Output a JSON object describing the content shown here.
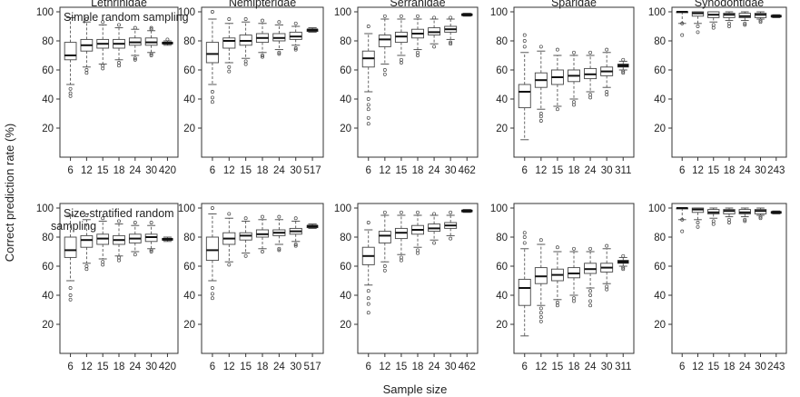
{
  "figure": {
    "y_label": "Correct prediction rate (%)",
    "x_label": "Sample size",
    "rows": [
      "Simple random sampling",
      "Size-stratified random sampling"
    ],
    "families": [
      "Lethrinidae",
      "Nemipteridae",
      "Serranidae",
      "Sparidae",
      "Synodontidae"
    ]
  },
  "chart_data": [
    {
      "type": "box",
      "title": "Lethrinidae",
      "sampling": "Simple random sampling",
      "ylim": [
        0,
        100
      ],
      "yticks": [
        20,
        40,
        60,
        80,
        100
      ],
      "categories": [
        "6",
        "12",
        "15",
        "18",
        "24",
        "30",
        "420"
      ],
      "boxes": [
        {
          "whislo": 50,
          "q1": 67,
          "med": 70,
          "q3": 79,
          "whishi": 96,
          "fliers": [
            44,
            42,
            47
          ]
        },
        {
          "whislo": 62,
          "q1": 73,
          "med": 77,
          "q3": 81,
          "whishi": 93,
          "fliers": [
            60,
            58,
            95
          ]
        },
        {
          "whislo": 64,
          "q1": 75,
          "med": 78,
          "q3": 81,
          "whishi": 91,
          "fliers": [
            63,
            61,
            93
          ]
        },
        {
          "whislo": 67,
          "q1": 75,
          "med": 78,
          "q3": 81,
          "whishi": 89,
          "fliers": [
            65,
            63,
            91
          ]
        },
        {
          "whislo": 70,
          "q1": 77,
          "med": 79,
          "q3": 82,
          "whishi": 88,
          "fliers": [
            68,
            67,
            89
          ]
        },
        {
          "whislo": 72,
          "q1": 77,
          "med": 79,
          "q3": 82,
          "whishi": 87,
          "fliers": [
            71,
            70,
            88,
            89
          ]
        },
        {
          "whislo": 77,
          "q1": 78,
          "med": 78.5,
          "q3": 79,
          "whishi": 80,
          "fliers": [
            81
          ]
        }
      ]
    },
    {
      "type": "box",
      "title": "Nemipteridae",
      "sampling": "Simple random sampling",
      "ylim": [
        0,
        100
      ],
      "yticks": [
        20,
        40,
        60,
        80,
        100
      ],
      "categories": [
        "6",
        "12",
        "15",
        "18",
        "24",
        "30",
        "517"
      ],
      "boxes": [
        {
          "whislo": 50,
          "q1": 65,
          "med": 71,
          "q3": 79,
          "whishi": 95,
          "fliers": [
            45,
            41,
            38,
            100
          ]
        },
        {
          "whislo": 65,
          "q1": 75,
          "med": 80,
          "q3": 82,
          "whishi": 92,
          "fliers": [
            62,
            59,
            95
          ]
        },
        {
          "whislo": 68,
          "q1": 77,
          "med": 80,
          "q3": 84,
          "whishi": 93,
          "fliers": [
            66,
            64,
            95
          ]
        },
        {
          "whislo": 72,
          "q1": 79,
          "med": 82,
          "q3": 85,
          "whishi": 92,
          "fliers": [
            70,
            69,
            94
          ]
        },
        {
          "whislo": 74,
          "q1": 80,
          "med": 82,
          "q3": 85,
          "whishi": 91,
          "fliers": [
            72,
            71,
            93
          ]
        },
        {
          "whislo": 77,
          "q1": 81,
          "med": 83,
          "q3": 86,
          "whishi": 90,
          "fliers": [
            75,
            74,
            92
          ]
        },
        {
          "whislo": 86,
          "q1": 86.5,
          "med": 87.5,
          "q3": 88,
          "whishi": 89,
          "fliers": []
        }
      ]
    },
    {
      "type": "box",
      "title": "Serranidae",
      "sampling": "Simple random sampling",
      "ylim": [
        0,
        100
      ],
      "yticks": [
        20,
        40,
        60,
        80,
        100
      ],
      "categories": [
        "6",
        "12",
        "15",
        "18",
        "24",
        "30",
        "462"
      ],
      "boxes": [
        {
          "whislo": 45,
          "q1": 62,
          "med": 68,
          "q3": 73,
          "whishi": 85,
          "fliers": [
            40,
            36,
            33,
            27,
            23,
            90
          ]
        },
        {
          "whislo": 64,
          "q1": 76,
          "med": 81,
          "q3": 84,
          "whishi": 95,
          "fliers": [
            60,
            57,
            97
          ]
        },
        {
          "whislo": 70,
          "q1": 79,
          "med": 83,
          "q3": 86,
          "whishi": 95,
          "fliers": [
            67,
            65,
            97
          ]
        },
        {
          "whislo": 74,
          "q1": 82,
          "med": 85,
          "q3": 88,
          "whishi": 95,
          "fliers": [
            72,
            70,
            97
          ]
        },
        {
          "whislo": 78,
          "q1": 84,
          "med": 86,
          "q3": 89,
          "whishi": 95,
          "fliers": [
            76,
            96
          ]
        },
        {
          "whislo": 81,
          "q1": 86,
          "med": 88,
          "q3": 90,
          "whishi": 95,
          "fliers": [
            79,
            78,
            96
          ]
        },
        {
          "whislo": 97,
          "q1": 97.5,
          "med": 98,
          "q3": 98.5,
          "whishi": 99,
          "fliers": []
        }
      ]
    },
    {
      "type": "box",
      "title": "Sparidae",
      "sampling": "Simple random sampling",
      "ylim": [
        0,
        100
      ],
      "yticks": [
        20,
        40,
        60,
        80,
        100
      ],
      "categories": [
        "6",
        "12",
        "15",
        "18",
        "24",
        "30",
        "311"
      ],
      "boxes": [
        {
          "whislo": 12,
          "q1": 34,
          "med": 45,
          "q3": 50,
          "whishi": 72,
          "fliers": [
            76,
            80,
            84
          ]
        },
        {
          "whislo": 33,
          "q1": 48,
          "med": 53,
          "q3": 58,
          "whishi": 73,
          "fliers": [
            30,
            28,
            25,
            76
          ]
        },
        {
          "whislo": 35,
          "q1": 50,
          "med": 55,
          "q3": 60,
          "whishi": 70,
          "fliers": [
            33,
            74
          ]
        },
        {
          "whislo": 40,
          "q1": 52,
          "med": 56,
          "q3": 60,
          "whishi": 70,
          "fliers": [
            38,
            36,
            72
          ]
        },
        {
          "whislo": 45,
          "q1": 54,
          "med": 57,
          "q3": 61,
          "whishi": 70,
          "fliers": [
            43,
            41,
            72
          ]
        },
        {
          "whislo": 48,
          "q1": 56,
          "med": 59,
          "q3": 62,
          "whishi": 72,
          "fliers": [
            45,
            43,
            74
          ]
        },
        {
          "whislo": 60,
          "q1": 62,
          "med": 63,
          "q3": 64,
          "whishi": 66,
          "fliers": [
            58,
            59,
            67
          ]
        }
      ]
    },
    {
      "type": "box",
      "title": "Synodontidae",
      "sampling": "Simple random sampling",
      "ylim": [
        0,
        100
      ],
      "yticks": [
        20,
        40,
        60,
        80,
        100
      ],
      "categories": [
        "6",
        "12",
        "15",
        "18",
        "24",
        "30",
        "243"
      ],
      "boxes": [
        {
          "whislo": 92,
          "q1": 100,
          "med": 100,
          "q3": 100,
          "whishi": 100,
          "fliers": [
            92,
            84
          ]
        },
        {
          "whislo": 92,
          "q1": 97,
          "med": 99,
          "q3": 100,
          "whishi": 100,
          "fliers": [
            90,
            86
          ]
        },
        {
          "whislo": 93,
          "q1": 96,
          "med": 98,
          "q3": 100,
          "whishi": 100,
          "fliers": [
            91,
            89
          ]
        },
        {
          "whislo": 94,
          "q1": 96,
          "med": 98,
          "q3": 99,
          "whishi": 100,
          "fliers": [
            92,
            90
          ]
        },
        {
          "whislo": 94,
          "q1": 96,
          "med": 97,
          "q3": 99,
          "whishi": 100,
          "fliers": [
            92,
            91
          ]
        },
        {
          "whislo": 95,
          "q1": 96,
          "med": 98,
          "q3": 99,
          "whishi": 100,
          "fliers": [
            94,
            93
          ]
        },
        {
          "whislo": 96,
          "q1": 96.5,
          "med": 97,
          "q3": 97.5,
          "whishi": 98,
          "fliers": []
        }
      ]
    },
    {
      "type": "box",
      "title": "",
      "sampling": "Size-stratified random sampling",
      "ylim": [
        0,
        100
      ],
      "yticks": [
        20,
        40,
        60,
        80,
        100
      ],
      "categories": [
        "6",
        "12",
        "15",
        "18",
        "24",
        "30",
        "420"
      ],
      "boxes": [
        {
          "whislo": 50,
          "q1": 66,
          "med": 71,
          "q3": 80,
          "whishi": 95,
          "fliers": [
            45,
            40,
            37
          ]
        },
        {
          "whislo": 62,
          "q1": 73,
          "med": 78,
          "q3": 81,
          "whishi": 92,
          "fliers": [
            60,
            58,
            95
          ]
        },
        {
          "whislo": 65,
          "q1": 75,
          "med": 79,
          "q3": 82,
          "whishi": 91,
          "fliers": [
            63,
            61,
            93
          ]
        },
        {
          "whislo": 67,
          "q1": 75,
          "med": 78,
          "q3": 81,
          "whishi": 89,
          "fliers": [
            66,
            64,
            91
          ]
        },
        {
          "whislo": 70,
          "q1": 76,
          "med": 79,
          "q3": 82,
          "whishi": 88,
          "fliers": [
            68,
            90
          ]
        },
        {
          "whislo": 72,
          "q1": 77,
          "med": 80,
          "q3": 82,
          "whishi": 88,
          "fliers": [
            71,
            70,
            90
          ]
        },
        {
          "whislo": 77,
          "q1": 78,
          "med": 78.5,
          "q3": 79,
          "whishi": 80,
          "fliers": []
        }
      ]
    },
    {
      "type": "box",
      "title": "",
      "sampling": "Size-stratified random sampling",
      "ylim": [
        0,
        100
      ],
      "yticks": [
        20,
        40,
        60,
        80,
        100
      ],
      "categories": [
        "6",
        "12",
        "15",
        "18",
        "24",
        "30",
        "517"
      ],
      "boxes": [
        {
          "whislo": 50,
          "q1": 64,
          "med": 71,
          "q3": 80,
          "whishi": 96,
          "fliers": [
            45,
            41,
            38,
            100
          ]
        },
        {
          "whislo": 63,
          "q1": 75,
          "med": 79,
          "q3": 83,
          "whishi": 93,
          "fliers": [
            61,
            96
          ]
        },
        {
          "whislo": 69,
          "q1": 78,
          "med": 81,
          "q3": 83,
          "whishi": 91,
          "fliers": [
            67,
            93
          ]
        },
        {
          "whislo": 72,
          "q1": 80,
          "med": 82,
          "q3": 85,
          "whishi": 92,
          "fliers": [
            70,
            94
          ]
        },
        {
          "whislo": 75,
          "q1": 81,
          "med": 83,
          "q3": 85,
          "whishi": 92,
          "fliers": [
            72,
            71,
            94
          ]
        },
        {
          "whislo": 77,
          "q1": 82,
          "med": 84,
          "q3": 86,
          "whishi": 91,
          "fliers": [
            75,
            74,
            93
          ]
        },
        {
          "whislo": 86,
          "q1": 86.5,
          "med": 87.5,
          "q3": 88,
          "whishi": 89,
          "fliers": []
        }
      ]
    },
    {
      "type": "box",
      "title": "",
      "sampling": "Size-stratified random sampling",
      "ylim": [
        0,
        100
      ],
      "yticks": [
        20,
        40,
        60,
        80,
        100
      ],
      "categories": [
        "6",
        "12",
        "15",
        "18",
        "24",
        "30",
        "462"
      ],
      "boxes": [
        {
          "whislo": 47,
          "q1": 61,
          "med": 67,
          "q3": 73,
          "whishi": 85,
          "fliers": [
            43,
            38,
            34,
            28,
            90
          ]
        },
        {
          "whislo": 63,
          "q1": 76,
          "med": 81,
          "q3": 84,
          "whishi": 95,
          "fliers": [
            60,
            57,
            97
          ]
        },
        {
          "whislo": 68,
          "q1": 79,
          "med": 83,
          "q3": 86,
          "whishi": 95,
          "fliers": [
            66,
            64,
            97
          ]
        },
        {
          "whislo": 73,
          "q1": 82,
          "med": 85,
          "q3": 88,
          "whishi": 95,
          "fliers": [
            71,
            69,
            97
          ]
        },
        {
          "whislo": 78,
          "q1": 84,
          "med": 86,
          "q3": 89,
          "whishi": 95,
          "fliers": [
            76,
            96
          ]
        },
        {
          "whislo": 81,
          "q1": 86,
          "med": 88,
          "q3": 90,
          "whishi": 95,
          "fliers": [
            79,
            97
          ]
        },
        {
          "whislo": 97,
          "q1": 97.5,
          "med": 98,
          "q3": 98.5,
          "whishi": 99,
          "fliers": []
        }
      ]
    },
    {
      "type": "box",
      "title": "",
      "sampling": "Size-stratified random sampling",
      "ylim": [
        0,
        100
      ],
      "yticks": [
        20,
        40,
        60,
        80,
        100
      ],
      "categories": [
        "6",
        "12",
        "15",
        "18",
        "24",
        "30",
        "311"
      ],
      "boxes": [
        {
          "whislo": 12,
          "q1": 33,
          "med": 45,
          "q3": 51,
          "whishi": 72,
          "fliers": [
            76,
            80,
            83
          ]
        },
        {
          "whislo": 33,
          "q1": 48,
          "med": 53,
          "q3": 59,
          "whishi": 75,
          "fliers": [
            31,
            28,
            25,
            22,
            78
          ]
        },
        {
          "whislo": 37,
          "q1": 50,
          "med": 54,
          "q3": 58,
          "whishi": 70,
          "fliers": [
            35,
            33,
            73
          ]
        },
        {
          "whislo": 40,
          "q1": 52,
          "med": 55,
          "q3": 59,
          "whishi": 70,
          "fliers": [
            38,
            36,
            72
          ]
        },
        {
          "whislo": 45,
          "q1": 55,
          "med": 58,
          "q3": 62,
          "whishi": 70,
          "fliers": [
            43,
            40,
            36,
            33,
            72
          ]
        },
        {
          "whislo": 48,
          "q1": 56,
          "med": 59,
          "q3": 62,
          "whishi": 72,
          "fliers": [
            46,
            44,
            74
          ]
        },
        {
          "whislo": 60,
          "q1": 62,
          "med": 63,
          "q3": 64,
          "whishi": 66,
          "fliers": [
            58,
            59,
            67
          ]
        }
      ]
    },
    {
      "type": "box",
      "title": "",
      "sampling": "Size-stratified random sampling",
      "ylim": [
        0,
        100
      ],
      "yticks": [
        20,
        40,
        60,
        80,
        100
      ],
      "categories": [
        "6",
        "12",
        "15",
        "18",
        "24",
        "30",
        "243"
      ],
      "boxes": [
        {
          "whislo": 92,
          "q1": 100,
          "med": 100,
          "q3": 100,
          "whishi": 100,
          "fliers": [
            92,
            84
          ]
        },
        {
          "whislo": 92,
          "q1": 97,
          "med": 99,
          "q3": 100,
          "whishi": 100,
          "fliers": [
            90,
            87
          ]
        },
        {
          "whislo": 93,
          "q1": 96,
          "med": 97,
          "q3": 99,
          "whishi": 100,
          "fliers": [
            91,
            89
          ]
        },
        {
          "whislo": 94,
          "q1": 96,
          "med": 98,
          "q3": 99,
          "whishi": 100,
          "fliers": [
            92,
            90
          ]
        },
        {
          "whislo": 94,
          "q1": 96,
          "med": 97,
          "q3": 99,
          "whishi": 100,
          "fliers": [
            92,
            91
          ]
        },
        {
          "whislo": 95,
          "q1": 96,
          "med": 98,
          "q3": 99,
          "whishi": 100,
          "fliers": [
            94,
            93
          ]
        },
        {
          "whislo": 96,
          "q1": 96.5,
          "med": 97,
          "q3": 97.5,
          "whishi": 98,
          "fliers": []
        }
      ]
    }
  ]
}
